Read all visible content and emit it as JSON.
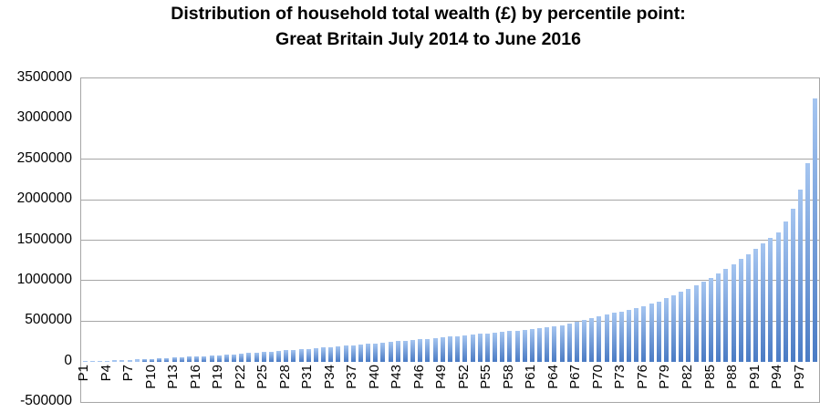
{
  "title": {
    "line1": "Distribution of household total wealth (£) by percentile point:",
    "line2": "Great Britain July 2014 to June 2016"
  },
  "chart_data": {
    "type": "bar",
    "title": "Distribution of household total wealth (£) by percentile point: Great Britain July 2014 to June 2016",
    "xlabel": "",
    "ylabel": "",
    "ylim": [
      -500000,
      3500000
    ],
    "grid": "horizontal",
    "legend": "none",
    "categories": [
      "P1",
      "P2",
      "P3",
      "P4",
      "P5",
      "P6",
      "P7",
      "P8",
      "P9",
      "P10",
      "P11",
      "P12",
      "P13",
      "P14",
      "P15",
      "P16",
      "P17",
      "P18",
      "P19",
      "P20",
      "P21",
      "P22",
      "P23",
      "P24",
      "P25",
      "P26",
      "P27",
      "P28",
      "P29",
      "P30",
      "P31",
      "P32",
      "P33",
      "P34",
      "P35",
      "P36",
      "P37",
      "P38",
      "P39",
      "P40",
      "P41",
      "P42",
      "P43",
      "P44",
      "P45",
      "P46",
      "P47",
      "P48",
      "P49",
      "P50",
      "P51",
      "P52",
      "P53",
      "P54",
      "P55",
      "P56",
      "P57",
      "P58",
      "P59",
      "P60",
      "P61",
      "P62",
      "P63",
      "P64",
      "P65",
      "P66",
      "P67",
      "P68",
      "P69",
      "P70",
      "P71",
      "P72",
      "P73",
      "P74",
      "P75",
      "P76",
      "P77",
      "P78",
      "P79",
      "P80",
      "P81",
      "P82",
      "P83",
      "P84",
      "P85",
      "P86",
      "P87",
      "P88",
      "P89",
      "P90",
      "P91",
      "P92",
      "P93",
      "P94",
      "P95",
      "P96",
      "P97",
      "P98",
      "P99"
    ],
    "values": [
      2000,
      5000,
      8000,
      11000,
      15000,
      18000,
      22000,
      26000,
      30000,
      35000,
      39000,
      44000,
      48000,
      53000,
      58000,
      63000,
      68000,
      74000,
      79000,
      85000,
      91000,
      97000,
      103000,
      110000,
      116000,
      123000,
      130000,
      137000,
      144000,
      151000,
      158000,
      165000,
      172000,
      180000,
      187000,
      195000,
      202000,
      210000,
      218000,
      226000,
      234000,
      242000,
      250000,
      258000,
      266000,
      274000,
      282000,
      290000,
      298000,
      306000,
      315000,
      324000,
      333000,
      342000,
      350000,
      358000,
      366000,
      375000,
      384000,
      393000,
      402000,
      411000,
      420000,
      432000,
      448000,
      468000,
      490000,
      513000,
      535000,
      558000,
      580000,
      600000,
      618000,
      636000,
      655000,
      683000,
      714000,
      745000,
      783000,
      820000,
      860000,
      900000,
      940000,
      985000,
      1035000,
      1085000,
      1145000,
      1200000,
      1265000,
      1320000,
      1390000,
      1455000,
      1525000,
      1600000,
      1730000,
      1890000,
      2120000,
      2450000,
      3250000
    ],
    "x_tick_step": 3,
    "x_tick_labels": [
      "P1",
      "P4",
      "P7",
      "P10",
      "P13",
      "P16",
      "P19",
      "P22",
      "P25",
      "P28",
      "P31",
      "P34",
      "P37",
      "P40",
      "P43",
      "P46",
      "P49",
      "P52",
      "P55",
      "P58",
      "P61",
      "P64",
      "P67",
      "P70",
      "P73",
      "P76",
      "P79",
      "P82",
      "P85",
      "P88",
      "P91",
      "P94",
      "P97"
    ],
    "y_tick_labels": [
      "3500000",
      "3000000",
      "2500000",
      "2000000",
      "1500000",
      "1000000",
      "500000",
      "0",
      "-500000"
    ],
    "y_tick_values": [
      3500000,
      3000000,
      2500000,
      2000000,
      1500000,
      1000000,
      500000,
      0,
      -500000
    ],
    "gridline_values": [
      2500000,
      2000000,
      1500000,
      1000000,
      500000
    ],
    "colors": {
      "bar_gradient_top": "#A5C5F0",
      "bar_gradient_bottom": "#4A7BC4",
      "gridline": "#A6A6A6",
      "plot_border": "#A6A6A6",
      "text": "#000000"
    }
  }
}
